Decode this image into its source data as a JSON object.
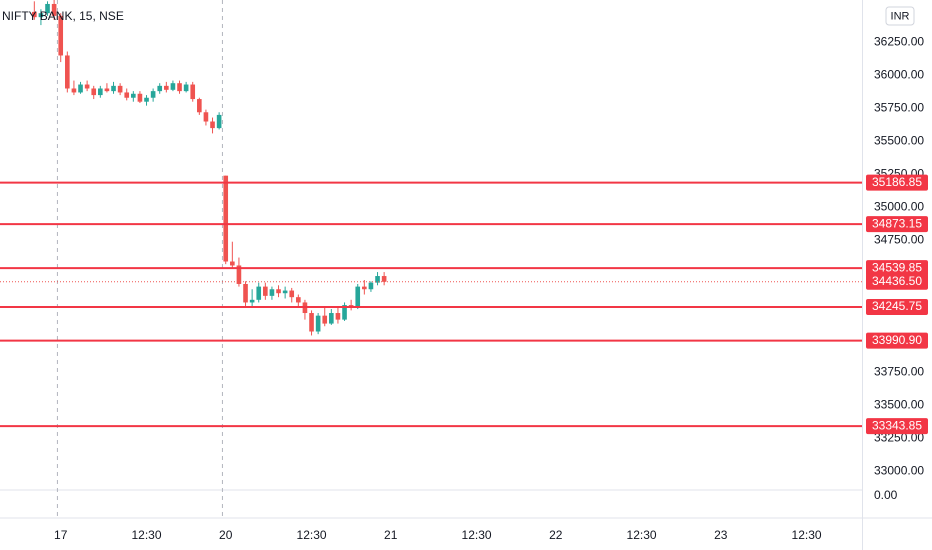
{
  "chart_data": {
    "type": "candlestick",
    "title": "NIFTY BANK, 15, NSE",
    "currency": "INR",
    "up_color": "#26a69a",
    "down_color": "#ef5350",
    "level_color": "#f23645",
    "x": [
      0,
      1,
      2,
      3,
      4,
      5,
      6,
      7,
      8,
      9,
      10,
      11,
      12,
      13,
      14,
      15,
      16,
      17,
      18,
      19,
      20,
      21,
      22,
      23,
      24,
      25,
      26,
      27,
      28,
      29,
      30,
      31,
      32,
      33,
      34,
      35,
      36,
      37,
      38,
      39,
      40,
      41,
      42,
      43,
      44,
      45,
      46,
      47,
      48,
      49,
      50,
      51,
      52,
      53
    ],
    "open": [
      36480,
      36440,
      36470,
      36540,
      36450,
      36150,
      35900,
      35870,
      35930,
      35900,
      35850,
      35900,
      35880,
      35920,
      35870,
      35830,
      35860,
      35800,
      35830,
      35880,
      35920,
      35890,
      35940,
      35880,
      35930,
      35820,
      35720,
      35650,
      35600,
      35240,
      34590,
      34560,
      34420,
      34280,
      34300,
      34400,
      34330,
      34380,
      34350,
      34370,
      34320,
      34280,
      34200,
      34060,
      34180,
      34120,
      34200,
      34150,
      34260,
      34240,
      34400,
      34380,
      34430,
      34480
    ],
    "high": [
      36560,
      36500,
      36560,
      36570,
      36470,
      36180,
      35960,
      35950,
      35960,
      35920,
      35920,
      35940,
      35950,
      35940,
      35900,
      35880,
      35880,
      35850,
      35900,
      35940,
      35950,
      35960,
      35960,
      35950,
      35950,
      35830,
      35740,
      35680,
      35720,
      35240,
      34740,
      34620,
      34440,
      34380,
      34430,
      34430,
      34400,
      34410,
      34400,
      34390,
      34340,
      34300,
      34220,
      34200,
      34240,
      34230,
      34250,
      34280,
      34300,
      34420,
      34450,
      34440,
      34510,
      34510
    ],
    "low": [
      36420,
      36380,
      36450,
      36420,
      36100,
      35870,
      35850,
      35860,
      35880,
      35820,
      35830,
      35870,
      35860,
      35850,
      35810,
      35800,
      35790,
      35770,
      35800,
      35860,
      35870,
      35880,
      35860,
      35870,
      35800,
      35700,
      35620,
      35560,
      35590,
      34570,
      34540,
      34400,
      34250,
      34240,
      34280,
      34300,
      34300,
      34320,
      34310,
      34280,
      34250,
      34150,
      34030,
      34040,
      34100,
      34110,
      34120,
      34140,
      34220,
      34230,
      34340,
      34360,
      34410,
      34410
    ],
    "close": [
      36440,
      36470,
      36540,
      36450,
      36150,
      35900,
      35870,
      35930,
      35900,
      35850,
      35900,
      35880,
      35920,
      35870,
      35830,
      35860,
      35800,
      35830,
      35880,
      35920,
      35890,
      35940,
      35880,
      35930,
      35820,
      35720,
      35650,
      35600,
      35700,
      34590,
      34560,
      34420,
      34280,
      34300,
      34400,
      34330,
      34380,
      34350,
      34370,
      34320,
      34280,
      34200,
      34060,
      34180,
      34120,
      34200,
      34150,
      34260,
      34240,
      34400,
      34380,
      34430,
      34480,
      34436.5
    ],
    "xlim": [
      -5.2,
      125.4
    ],
    "ylim": [
      32860,
      36570
    ],
    "xticks": [
      {
        "value": 4,
        "label": "17"
      },
      {
        "value": 17,
        "label": "12:30"
      },
      {
        "value": 29,
        "label": "20"
      },
      {
        "value": 42,
        "label": "12:30"
      },
      {
        "value": 54,
        "label": "21"
      },
      {
        "value": 67,
        "label": "12:30"
      },
      {
        "value": 79,
        "label": "22"
      },
      {
        "value": 92,
        "label": "12:30"
      },
      {
        "value": 104,
        "label": "23"
      },
      {
        "value": 117,
        "label": "12:30"
      }
    ],
    "session_starts": [
      4,
      29
    ],
    "yticks": [
      {
        "value": 36250,
        "label": "36250.00"
      },
      {
        "value": 36000,
        "label": "36000.00"
      },
      {
        "value": 35750,
        "label": "35750.00"
      },
      {
        "value": 35500,
        "label": "35500.00"
      },
      {
        "value": 35250,
        "label": "35250.00"
      },
      {
        "value": 35000,
        "label": "35000.00"
      },
      {
        "value": 34750,
        "label": "34750.00"
      },
      {
        "value": 33750,
        "label": "33750.00"
      },
      {
        "value": 33500,
        "label": "33500.00"
      },
      {
        "value": 33250,
        "label": "33250.00"
      },
      {
        "value": 33000,
        "label": "33000.00"
      }
    ],
    "levels": [
      {
        "value": 35186.85,
        "label": "35186.85"
      },
      {
        "value": 34873.15,
        "label": "34873.15"
      },
      {
        "value": 34539.85,
        "label": "34539.85"
      },
      {
        "value": 34245.75,
        "label": "34245.75"
      },
      {
        "value": 33990.9,
        "label": "33990.90"
      },
      {
        "value": 33343.85,
        "label": "33343.85"
      }
    ],
    "last_price": {
      "value": 34436.5,
      "label": "34436.50"
    },
    "volume_pane_label": "0.00"
  }
}
